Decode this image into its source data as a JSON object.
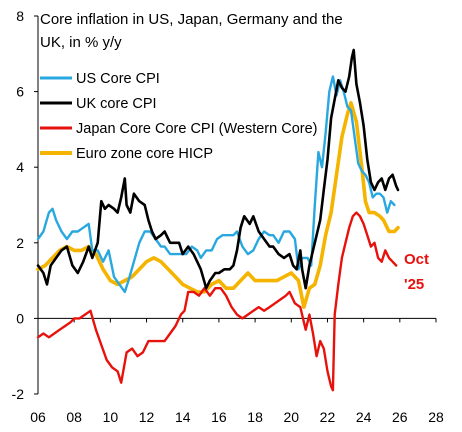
{
  "chart_data": {
    "type": "line",
    "title": "Core inflation in US, Japan, Germany and the UK, in % y/y",
    "title_lines": [
      "Core inflation in US, Japan, Germany and the",
      "UK, in % y/y"
    ],
    "xlabel": "",
    "ylabel": "",
    "xlim": [
      2006,
      2028
    ],
    "ylim": [
      -2,
      8
    ],
    "x_tick_labels": [
      "06",
      "08",
      "10",
      "12",
      "14",
      "16",
      "18",
      "20",
      "22",
      "24",
      "26",
      "28"
    ],
    "x_ticks": [
      2006,
      2008,
      2010,
      2012,
      2014,
      2016,
      2018,
      2020,
      2022,
      2024,
      2026,
      2028
    ],
    "y_tick_labels": [
      "-2",
      "0",
      "2",
      "4",
      "6",
      "8"
    ],
    "y_ticks": [
      -2,
      0,
      2,
      4,
      6,
      8
    ],
    "grid": false,
    "legend_position": "top-left",
    "annotation": {
      "lines": [
        "Oct",
        "'25"
      ],
      "color": "#e8120c"
    },
    "series": [
      {
        "name": "US Core CPI",
        "color": "#29a8e0",
        "points": [
          [
            2006.0,
            2.1
          ],
          [
            2006.3,
            2.3
          ],
          [
            2006.6,
            2.8
          ],
          [
            2006.8,
            2.9
          ],
          [
            2007.0,
            2.6
          ],
          [
            2007.3,
            2.3
          ],
          [
            2007.6,
            2.1
          ],
          [
            2007.9,
            2.3
          ],
          [
            2008.2,
            2.3
          ],
          [
            2008.5,
            2.4
          ],
          [
            2008.8,
            2.5
          ],
          [
            2009.0,
            1.8
          ],
          [
            2009.3,
            1.8
          ],
          [
            2009.6,
            1.5
          ],
          [
            2009.9,
            1.8
          ],
          [
            2010.2,
            1.1
          ],
          [
            2010.5,
            0.9
          ],
          [
            2010.8,
            0.7
          ],
          [
            2011.0,
            1.0
          ],
          [
            2011.3,
            1.5
          ],
          [
            2011.6,
            2.0
          ],
          [
            2011.9,
            2.3
          ],
          [
            2012.2,
            2.3
          ],
          [
            2012.5,
            2.1
          ],
          [
            2012.8,
            1.9
          ],
          [
            2013.0,
            1.9
          ],
          [
            2013.3,
            1.7
          ],
          [
            2013.6,
            1.7
          ],
          [
            2013.9,
            1.7
          ],
          [
            2014.2,
            1.7
          ],
          [
            2014.5,
            1.9
          ],
          [
            2014.8,
            1.8
          ],
          [
            2015.0,
            1.6
          ],
          [
            2015.3,
            1.8
          ],
          [
            2015.6,
            1.8
          ],
          [
            2015.9,
            2.1
          ],
          [
            2016.2,
            2.2
          ],
          [
            2016.5,
            2.2
          ],
          [
            2016.8,
            2.2
          ],
          [
            2017.0,
            2.3
          ],
          [
            2017.3,
            1.9
          ],
          [
            2017.6,
            1.7
          ],
          [
            2017.9,
            1.8
          ],
          [
            2018.2,
            2.1
          ],
          [
            2018.5,
            2.3
          ],
          [
            2018.8,
            2.2
          ],
          [
            2019.0,
            2.2
          ],
          [
            2019.3,
            2.0
          ],
          [
            2019.6,
            2.3
          ],
          [
            2019.9,
            2.3
          ],
          [
            2020.2,
            2.1
          ],
          [
            2020.4,
            1.3
          ],
          [
            2020.6,
            1.6
          ],
          [
            2020.9,
            1.6
          ],
          [
            2021.1,
            1.4
          ],
          [
            2021.3,
            3.0
          ],
          [
            2021.5,
            4.4
          ],
          [
            2021.7,
            4.0
          ],
          [
            2021.9,
            4.9
          ],
          [
            2022.1,
            6.0
          ],
          [
            2022.3,
            6.4
          ],
          [
            2022.5,
            5.9
          ],
          [
            2022.7,
            6.3
          ],
          [
            2022.9,
            6.0
          ],
          [
            2023.1,
            5.6
          ],
          [
            2023.3,
            5.5
          ],
          [
            2023.5,
            4.8
          ],
          [
            2023.7,
            4.1
          ],
          [
            2023.9,
            3.9
          ],
          [
            2024.1,
            3.8
          ],
          [
            2024.3,
            3.6
          ],
          [
            2024.5,
            3.2
          ],
          [
            2024.7,
            3.3
          ],
          [
            2024.9,
            3.3
          ],
          [
            2025.1,
            3.2
          ],
          [
            2025.3,
            2.8
          ],
          [
            2025.5,
            3.1
          ],
          [
            2025.7,
            3.0
          ]
        ]
      },
      {
        "name": "UK core CPI",
        "color": "#000000",
        "points": [
          [
            2006.0,
            1.4
          ],
          [
            2006.3,
            1.2
          ],
          [
            2006.5,
            0.9
          ],
          [
            2006.7,
            1.4
          ],
          [
            2007.0,
            1.6
          ],
          [
            2007.3,
            1.8
          ],
          [
            2007.6,
            1.9
          ],
          [
            2007.9,
            1.4
          ],
          [
            2008.2,
            1.2
          ],
          [
            2008.5,
            1.5
          ],
          [
            2008.8,
            1.9
          ],
          [
            2009.0,
            1.6
          ],
          [
            2009.3,
            2.0
          ],
          [
            2009.5,
            3.1
          ],
          [
            2009.7,
            2.9
          ],
          [
            2009.9,
            3.0
          ],
          [
            2010.2,
            2.9
          ],
          [
            2010.4,
            2.8
          ],
          [
            2010.6,
            3.2
          ],
          [
            2010.8,
            3.7
          ],
          [
            2010.9,
            3.0
          ],
          [
            2011.1,
            2.8
          ],
          [
            2011.3,
            3.3
          ],
          [
            2011.6,
            3.1
          ],
          [
            2011.9,
            3.0
          ],
          [
            2012.1,
            2.6
          ],
          [
            2012.3,
            2.3
          ],
          [
            2012.5,
            2.1
          ],
          [
            2012.8,
            2.2
          ],
          [
            2013.0,
            2.3
          ],
          [
            2013.3,
            2.0
          ],
          [
            2013.5,
            2.0
          ],
          [
            2013.8,
            2.0
          ],
          [
            2014.0,
            1.7
          ],
          [
            2014.3,
            1.9
          ],
          [
            2014.6,
            1.7
          ],
          [
            2014.8,
            1.5
          ],
          [
            2015.0,
            1.3
          ],
          [
            2015.3,
            0.8
          ],
          [
            2015.5,
            1.0
          ],
          [
            2015.8,
            1.2
          ],
          [
            2016.0,
            1.2
          ],
          [
            2016.3,
            1.3
          ],
          [
            2016.6,
            1.3
          ],
          [
            2016.8,
            1.4
          ],
          [
            2017.0,
            1.8
          ],
          [
            2017.2,
            2.4
          ],
          [
            2017.4,
            2.7
          ],
          [
            2017.7,
            2.5
          ],
          [
            2017.9,
            2.7
          ],
          [
            2018.2,
            2.3
          ],
          [
            2018.5,
            2.1
          ],
          [
            2018.8,
            1.9
          ],
          [
            2019.0,
            1.9
          ],
          [
            2019.3,
            1.7
          ],
          [
            2019.6,
            1.6
          ],
          [
            2019.9,
            1.7
          ],
          [
            2020.1,
            1.4
          ],
          [
            2020.3,
            1.3
          ],
          [
            2020.5,
            1.8
          ],
          [
            2020.6,
            1.3
          ],
          [
            2020.8,
            0.8
          ],
          [
            2021.0,
            1.4
          ],
          [
            2021.2,
            1.8
          ],
          [
            2021.4,
            2.2
          ],
          [
            2021.6,
            2.6
          ],
          [
            2021.8,
            3.4
          ],
          [
            2022.0,
            4.2
          ],
          [
            2022.2,
            5.3
          ],
          [
            2022.4,
            5.8
          ],
          [
            2022.6,
            6.3
          ],
          [
            2022.8,
            6.1
          ],
          [
            2023.0,
            6.0
          ],
          [
            2023.2,
            6.4
          ],
          [
            2023.35,
            6.9
          ],
          [
            2023.45,
            7.1
          ],
          [
            2023.6,
            6.2
          ],
          [
            2023.8,
            5.7
          ],
          [
            2024.0,
            5.1
          ],
          [
            2024.2,
            4.2
          ],
          [
            2024.4,
            3.6
          ],
          [
            2024.6,
            3.4
          ],
          [
            2024.8,
            3.6
          ],
          [
            2025.0,
            3.7
          ],
          [
            2025.2,
            3.4
          ],
          [
            2025.4,
            3.7
          ],
          [
            2025.6,
            3.8
          ],
          [
            2025.8,
            3.5
          ],
          [
            2025.9,
            3.4
          ]
        ]
      },
      {
        "name": "Japan Core Core CPI (Western Core)",
        "color": "#e8120c",
        "points": [
          [
            2006.0,
            -0.5
          ],
          [
            2006.3,
            -0.4
          ],
          [
            2006.6,
            -0.5
          ],
          [
            2006.9,
            -0.4
          ],
          [
            2007.2,
            -0.3
          ],
          [
            2007.5,
            -0.2
          ],
          [
            2007.8,
            -0.1
          ],
          [
            2008.0,
            0.0
          ],
          [
            2008.3,
            0.0
          ],
          [
            2008.6,
            0.1
          ],
          [
            2008.9,
            0.2
          ],
          [
            2009.2,
            -0.3
          ],
          [
            2009.5,
            -0.7
          ],
          [
            2009.8,
            -1.1
          ],
          [
            2010.1,
            -1.3
          ],
          [
            2010.4,
            -1.4
          ],
          [
            2010.6,
            -1.7
          ],
          [
            2010.9,
            -0.9
          ],
          [
            2011.2,
            -0.8
          ],
          [
            2011.5,
            -1.0
          ],
          [
            2011.8,
            -0.9
          ],
          [
            2012.1,
            -0.6
          ],
          [
            2012.4,
            -0.6
          ],
          [
            2012.7,
            -0.6
          ],
          [
            2013.0,
            -0.6
          ],
          [
            2013.3,
            -0.4
          ],
          [
            2013.6,
            -0.2
          ],
          [
            2013.9,
            0.1
          ],
          [
            2014.1,
            0.2
          ],
          [
            2014.3,
            0.7
          ],
          [
            2014.6,
            0.7
          ],
          [
            2014.9,
            0.6
          ],
          [
            2015.2,
            0.8
          ],
          [
            2015.5,
            0.6
          ],
          [
            2015.8,
            0.8
          ],
          [
            2016.1,
            0.8
          ],
          [
            2016.4,
            0.6
          ],
          [
            2016.7,
            0.3
          ],
          [
            2017.0,
            0.1
          ],
          [
            2017.3,
            0.0
          ],
          [
            2017.6,
            0.1
          ],
          [
            2017.9,
            0.2
          ],
          [
            2018.2,
            0.3
          ],
          [
            2018.5,
            0.2
          ],
          [
            2018.8,
            0.3
          ],
          [
            2019.1,
            0.4
          ],
          [
            2019.4,
            0.5
          ],
          [
            2019.7,
            0.6
          ],
          [
            2019.9,
            0.7
          ],
          [
            2020.2,
            0.4
          ],
          [
            2020.5,
            0.3
          ],
          [
            2020.8,
            -0.3
          ],
          [
            2021.0,
            0.1
          ],
          [
            2021.2,
            -0.4
          ],
          [
            2021.4,
            -1.0
          ],
          [
            2021.6,
            -0.6
          ],
          [
            2021.8,
            -0.8
          ],
          [
            2022.0,
            -1.4
          ],
          [
            2022.2,
            -1.8
          ],
          [
            2022.3,
            -1.9
          ],
          [
            2022.4,
            0.1
          ],
          [
            2022.6,
            0.9
          ],
          [
            2022.8,
            1.6
          ],
          [
            2023.0,
            2.0
          ],
          [
            2023.2,
            2.4
          ],
          [
            2023.4,
            2.7
          ],
          [
            2023.6,
            2.8
          ],
          [
            2023.8,
            2.7
          ],
          [
            2024.0,
            2.5
          ],
          [
            2024.2,
            2.2
          ],
          [
            2024.4,
            1.9
          ],
          [
            2024.6,
            2.0
          ],
          [
            2024.8,
            1.6
          ],
          [
            2025.0,
            1.5
          ],
          [
            2025.2,
            1.8
          ],
          [
            2025.4,
            1.6
          ],
          [
            2025.6,
            1.5
          ],
          [
            2025.8,
            1.4
          ]
        ]
      },
      {
        "name": "Euro zone core HICP",
        "color": "#f5b400",
        "points": [
          [
            2006.0,
            1.3
          ],
          [
            2006.4,
            1.4
          ],
          [
            2006.8,
            1.6
          ],
          [
            2007.2,
            1.8
          ],
          [
            2007.6,
            1.9
          ],
          [
            2008.0,
            1.8
          ],
          [
            2008.4,
            1.8
          ],
          [
            2008.8,
            1.9
          ],
          [
            2009.2,
            1.7
          ],
          [
            2009.6,
            1.3
          ],
          [
            2010.0,
            1.0
          ],
          [
            2010.4,
            0.9
          ],
          [
            2010.8,
            1.0
          ],
          [
            2011.2,
            1.1
          ],
          [
            2011.6,
            1.3
          ],
          [
            2012.0,
            1.5
          ],
          [
            2012.4,
            1.6
          ],
          [
            2012.8,
            1.5
          ],
          [
            2013.2,
            1.3
          ],
          [
            2013.6,
            1.1
          ],
          [
            2014.0,
            0.9
          ],
          [
            2014.4,
            0.8
          ],
          [
            2014.8,
            0.7
          ],
          [
            2015.2,
            0.7
          ],
          [
            2015.6,
            0.9
          ],
          [
            2016.0,
            1.0
          ],
          [
            2016.4,
            0.8
          ],
          [
            2016.8,
            0.8
          ],
          [
            2017.2,
            1.0
          ],
          [
            2017.6,
            1.2
          ],
          [
            2018.0,
            1.0
          ],
          [
            2018.4,
            1.0
          ],
          [
            2018.8,
            1.0
          ],
          [
            2019.2,
            1.0
          ],
          [
            2019.6,
            1.1
          ],
          [
            2020.0,
            1.2
          ],
          [
            2020.4,
            1.0
          ],
          [
            2020.7,
            0.3
          ],
          [
            2021.0,
            0.8
          ],
          [
            2021.3,
            0.9
          ],
          [
            2021.6,
            1.4
          ],
          [
            2021.9,
            2.2
          ],
          [
            2022.2,
            2.8
          ],
          [
            2022.5,
            3.8
          ],
          [
            2022.8,
            4.8
          ],
          [
            2023.1,
            5.4
          ],
          [
            2023.3,
            5.7
          ],
          [
            2023.6,
            5.2
          ],
          [
            2023.9,
            4.0
          ],
          [
            2024.1,
            3.1
          ],
          [
            2024.3,
            2.8
          ],
          [
            2024.6,
            2.8
          ],
          [
            2024.9,
            2.7
          ],
          [
            2025.1,
            2.6
          ],
          [
            2025.4,
            2.3
          ],
          [
            2025.7,
            2.3
          ],
          [
            2025.9,
            2.4
          ]
        ]
      }
    ]
  }
}
